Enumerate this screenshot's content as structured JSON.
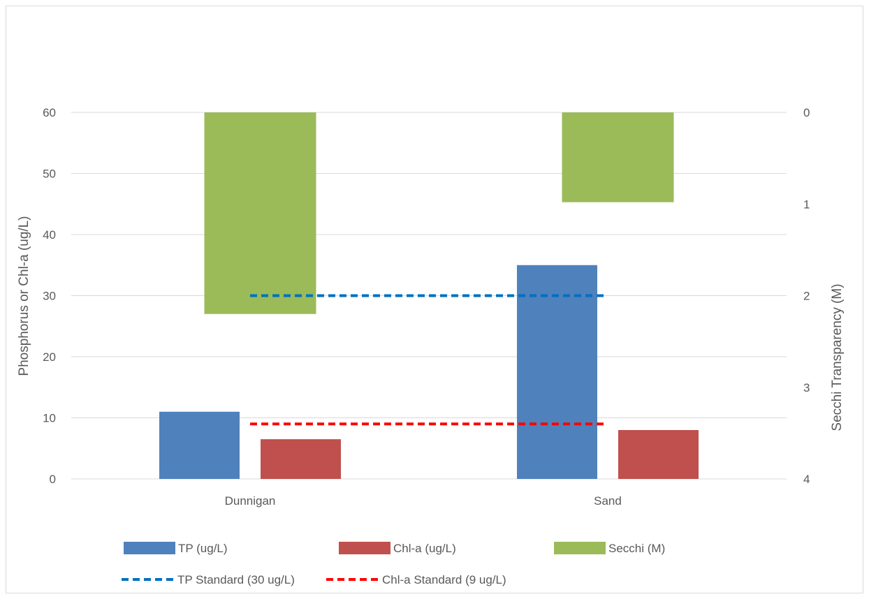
{
  "chart_data": {
    "type": "bar",
    "categories": [
      "Dunnigan",
      "Sand"
    ],
    "series": [
      {
        "name": "TP (ug/L)",
        "axis": "left",
        "values": [
          11,
          35
        ],
        "color": "#4F81BD"
      },
      {
        "name": "Chl-a (ug/L)",
        "axis": "left",
        "values": [
          6.5,
          8
        ],
        "color": "#C0504D"
      },
      {
        "name": "Secchi (M)",
        "axis": "right",
        "values": [
          2.2,
          0.98
        ],
        "color": "#9BBB59",
        "inverted": true
      }
    ],
    "reference_lines": [
      {
        "name": "TP Standard (30 ug/L)",
        "value": 30,
        "color": "#0070C0",
        "style": "dashed"
      },
      {
        "name": "Chl-a Standard (9 ug/L)",
        "value": 9,
        "color": "#FF0000",
        "style": "dashed"
      }
    ],
    "ylabel": "Phosphorus or Chl-a (ug/L)",
    "ylim": [
      0,
      60
    ],
    "yticks": [
      "0",
      "10",
      "20",
      "30",
      "40",
      "50",
      "60"
    ],
    "y2label": "Secchi Transparency (M)",
    "y2lim": [
      4,
      0
    ],
    "y2ticks": [
      "0",
      "1",
      "2",
      "3",
      "4"
    ],
    "y2_inverted": true,
    "grid": true,
    "legend_position": "bottom"
  }
}
